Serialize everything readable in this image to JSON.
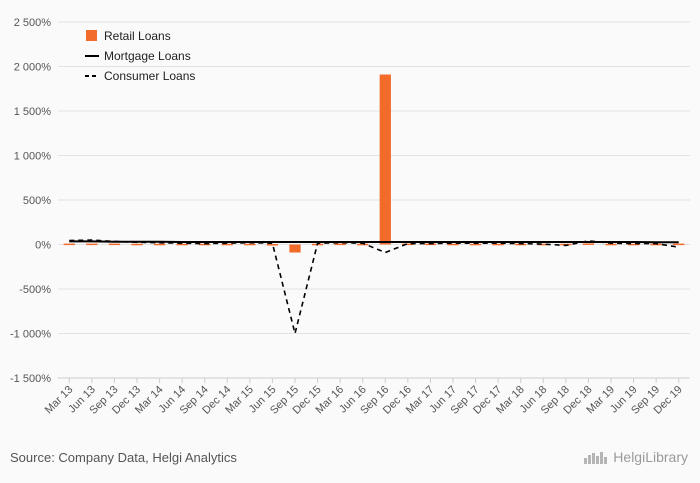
{
  "chart_data": {
    "type": "bar",
    "categories": [
      "Mar 13",
      "Jun 13",
      "Sep 13",
      "Dec 13",
      "Mar 14",
      "Jun 14",
      "Sep 14",
      "Dec 14",
      "Mar 15",
      "Jun 15",
      "Sep 15",
      "Dec 15",
      "Mar 16",
      "Jun 16",
      "Sep 16",
      "Dec 16",
      "Mar 17",
      "Jun 17",
      "Sep 17",
      "Dec 17",
      "Mar 18",
      "Jun 18",
      "Sep 18",
      "Dec 18",
      "Mar 19",
      "Jun 19",
      "Sep 19",
      "Dec 19"
    ],
    "series": [
      {
        "name": "Retail Loans",
        "kind": "bar",
        "color": "#f26b2b",
        "values": [
          10,
          10,
          10,
          8,
          8,
          8,
          8,
          8,
          8,
          5,
          -90,
          8,
          10,
          8,
          1910,
          10,
          10,
          8,
          8,
          8,
          8,
          8,
          8,
          12,
          8,
          8,
          8,
          10
        ]
      },
      {
        "name": "Mortgage Loans",
        "kind": "line",
        "color": "#000000",
        "dash": "solid",
        "values": [
          35,
          35,
          30,
          30,
          30,
          28,
          28,
          28,
          28,
          28,
          28,
          28,
          28,
          28,
          28,
          28,
          28,
          28,
          28,
          28,
          28,
          28,
          28,
          28,
          28,
          28,
          25,
          25
        ]
      },
      {
        "name": "Consumer Loans",
        "kind": "line",
        "color": "#000000",
        "dash": "dashed",
        "values": [
          45,
          50,
          35,
          25,
          20,
          15,
          10,
          15,
          20,
          15,
          -1000,
          15,
          20,
          15,
          -90,
          10,
          10,
          15,
          15,
          15,
          10,
          5,
          -10,
          40,
          15,
          10,
          10,
          -30
        ]
      }
    ],
    "y_ticks": [
      "2 500%",
      "2 000%",
      "1 500%",
      "1 000%",
      "500%",
      "0%",
      "-500%",
      "-1 000%",
      "-1 500%"
    ],
    "y_tick_values": [
      2500,
      2000,
      1500,
      1000,
      500,
      0,
      -500,
      -1000,
      -1500
    ],
    "ylim": [
      -1500,
      2500
    ],
    "grid": true,
    "legend_position": "top-left"
  },
  "footer": {
    "source": "Source: Company Data, Helgi Analytics",
    "brand": "HelgiLibrary"
  },
  "colors": {
    "retail": "#f26b2b",
    "grid": "#e3e3e3",
    "text": "#555555"
  }
}
